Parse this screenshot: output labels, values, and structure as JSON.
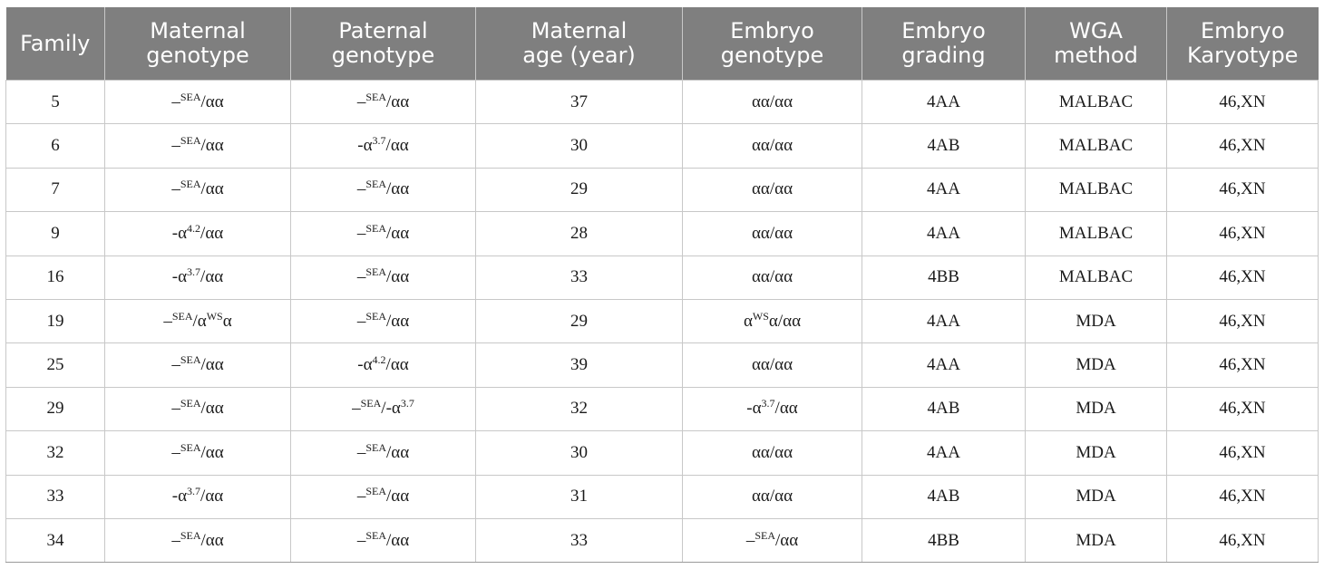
{
  "table": {
    "headers": [
      [
        "Family"
      ],
      [
        "Maternal",
        "genotype"
      ],
      [
        "Paternal",
        "genotype"
      ],
      [
        "Maternal",
        "age (year)"
      ],
      [
        "Embryo",
        "genotype"
      ],
      [
        "Embryo",
        "grading"
      ],
      [
        "WGA",
        "method"
      ],
      [
        "Embryo",
        "Karyotype"
      ]
    ],
    "rows": [
      {
        "family": "5",
        "maternal": [
          [
            "–",
            ""
          ],
          [
            "SEA",
            "sup"
          ],
          [
            "/αα",
            ""
          ]
        ],
        "paternal": [
          [
            "–",
            ""
          ],
          [
            "SEA",
            "sup"
          ],
          [
            "/αα",
            ""
          ]
        ],
        "age": "37",
        "embryo": [
          [
            "αα/αα",
            ""
          ]
        ],
        "grading": "4AA",
        "wga": "MALBAC",
        "karyotype": "46,XN"
      },
      {
        "family": "6",
        "maternal": [
          [
            "–",
            ""
          ],
          [
            "SEA",
            "sup"
          ],
          [
            "/αα",
            ""
          ]
        ],
        "paternal": [
          [
            "-α",
            ""
          ],
          [
            "3.7",
            "sup"
          ],
          [
            "/αα",
            ""
          ]
        ],
        "age": "30",
        "embryo": [
          [
            "αα/αα",
            ""
          ]
        ],
        "grading": "4AB",
        "wga": "MALBAC",
        "karyotype": "46,XN"
      },
      {
        "family": "7",
        "maternal": [
          [
            "–",
            ""
          ],
          [
            "SEA",
            "sup"
          ],
          [
            "/αα",
            ""
          ]
        ],
        "paternal": [
          [
            "–",
            ""
          ],
          [
            "SEA",
            "sup"
          ],
          [
            "/αα",
            ""
          ]
        ],
        "age": "29",
        "embryo": [
          [
            "αα/αα",
            ""
          ]
        ],
        "grading": "4AA",
        "wga": "MALBAC",
        "karyotype": "46,XN"
      },
      {
        "family": "9",
        "maternal": [
          [
            "-α",
            ""
          ],
          [
            "4.2",
            "sup"
          ],
          [
            "/αα",
            ""
          ]
        ],
        "paternal": [
          [
            "–",
            ""
          ],
          [
            "SEA",
            "sup"
          ],
          [
            "/αα",
            ""
          ]
        ],
        "age": "28",
        "embryo": [
          [
            "αα/αα",
            ""
          ]
        ],
        "grading": "4AA",
        "wga": "MALBAC",
        "karyotype": "46,XN"
      },
      {
        "family": "16",
        "maternal": [
          [
            "-α",
            ""
          ],
          [
            "3.7",
            "sup"
          ],
          [
            "/αα",
            ""
          ]
        ],
        "paternal": [
          [
            "–",
            ""
          ],
          [
            "SEA",
            "sup"
          ],
          [
            "/αα",
            ""
          ]
        ],
        "age": "33",
        "embryo": [
          [
            "αα/αα",
            ""
          ]
        ],
        "grading": "4BB",
        "wga": "MALBAC",
        "karyotype": "46,XN"
      },
      {
        "family": "19",
        "maternal": [
          [
            "–",
            ""
          ],
          [
            "SEA",
            "sup"
          ],
          [
            "/α",
            ""
          ],
          [
            "WS",
            "sup"
          ],
          [
            "α",
            ""
          ]
        ],
        "paternal": [
          [
            "–",
            ""
          ],
          [
            "SEA",
            "sup"
          ],
          [
            "/αα",
            ""
          ]
        ],
        "age": "29",
        "embryo": [
          [
            "α",
            ""
          ],
          [
            "WS",
            "sup"
          ],
          [
            "α/αα",
            ""
          ]
        ],
        "grading": "4AA",
        "wga": "MDA",
        "karyotype": "46,XN"
      },
      {
        "family": "25",
        "maternal": [
          [
            "–",
            ""
          ],
          [
            "SEA",
            "sup"
          ],
          [
            "/αα",
            ""
          ]
        ],
        "paternal": [
          [
            "-α",
            ""
          ],
          [
            "4.2",
            "sup"
          ],
          [
            "/αα",
            ""
          ]
        ],
        "age": "39",
        "embryo": [
          [
            "αα/αα",
            ""
          ]
        ],
        "grading": "4AA",
        "wga": "MDA",
        "karyotype": "46,XN"
      },
      {
        "family": "29",
        "maternal": [
          [
            "–",
            ""
          ],
          [
            "SEA",
            "sup"
          ],
          [
            "/αα",
            ""
          ]
        ],
        "paternal": [
          [
            "–",
            ""
          ],
          [
            "SEA",
            "sup"
          ],
          [
            "/-α",
            ""
          ],
          [
            "3.7",
            "sup"
          ]
        ],
        "age": "32",
        "embryo": [
          [
            "-α",
            ""
          ],
          [
            "3.7",
            "sup"
          ],
          [
            "/αα",
            ""
          ]
        ],
        "grading": "4AB",
        "wga": "MDA",
        "karyotype": "46,XN"
      },
      {
        "family": "32",
        "maternal": [
          [
            "–",
            ""
          ],
          [
            "SEA",
            "sup"
          ],
          [
            "/αα",
            ""
          ]
        ],
        "paternal": [
          [
            "–",
            ""
          ],
          [
            "SEA",
            "sup"
          ],
          [
            "/αα",
            ""
          ]
        ],
        "age": "30",
        "embryo": [
          [
            "αα/αα",
            ""
          ]
        ],
        "grading": "4AA",
        "wga": "MDA",
        "karyotype": "46,XN"
      },
      {
        "family": "33",
        "maternal": [
          [
            "-α",
            ""
          ],
          [
            "3.7",
            "sup"
          ],
          [
            "/αα",
            ""
          ]
        ],
        "paternal": [
          [
            "–",
            ""
          ],
          [
            "SEA",
            "sup"
          ],
          [
            "/αα",
            ""
          ]
        ],
        "age": "31",
        "embryo": [
          [
            "αα/αα",
            ""
          ]
        ],
        "grading": "4AB",
        "wga": "MDA",
        "karyotype": "46,XN"
      },
      {
        "family": "34",
        "maternal": [
          [
            "–",
            ""
          ],
          [
            "SEA",
            "sup"
          ],
          [
            "/αα",
            ""
          ]
        ],
        "paternal": [
          [
            "–",
            ""
          ],
          [
            "SEA",
            "sup"
          ],
          [
            "/αα",
            ""
          ]
        ],
        "age": "33",
        "embryo": [
          [
            "–",
            ""
          ],
          [
            "SEA",
            "sup"
          ],
          [
            "/αα",
            ""
          ]
        ],
        "grading": "4BB",
        "wga": "MDA",
        "karyotype": "46,XN"
      }
    ]
  }
}
